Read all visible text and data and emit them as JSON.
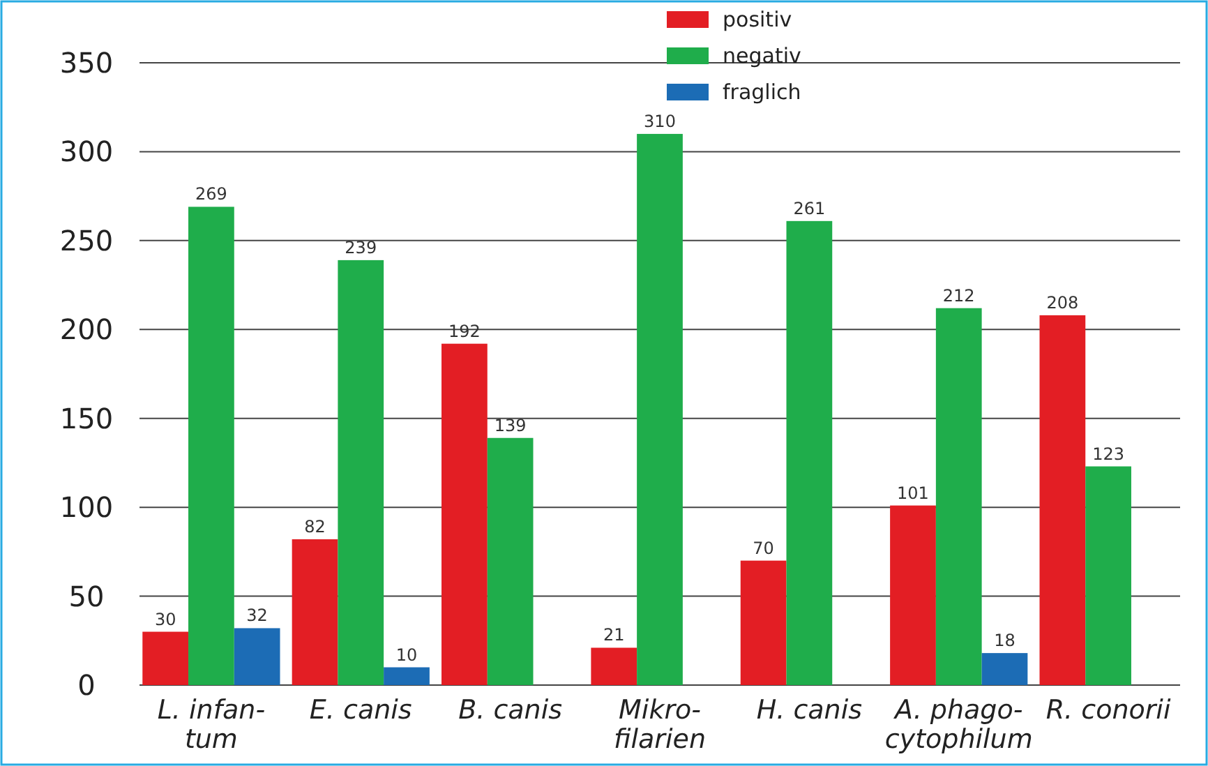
{
  "chart_data": {
    "type": "bar",
    "categories": [
      "L. infan-\ntum",
      "E. canis",
      "B. canis",
      "Mikro-\nfilarien",
      "H. canis",
      "A. phago-\ncytophilum",
      "R. conorii"
    ],
    "series": [
      {
        "name": "positiv",
        "color": "#e31e24",
        "values": [
          30,
          82,
          192,
          21,
          70,
          101,
          208
        ]
      },
      {
        "name": "negativ",
        "color": "#1fad4b",
        "values": [
          269,
          239,
          139,
          310,
          261,
          212,
          123
        ]
      },
      {
        "name": "fraglich",
        "color": "#1c6cb5",
        "values": [
          32,
          10,
          null,
          null,
          null,
          18,
          null
        ]
      }
    ],
    "ylim": [
      0,
      350
    ],
    "yticks": [
      0,
      50,
      100,
      150,
      200,
      250,
      300,
      350
    ],
    "grid": "y",
    "legend": "top right",
    "data_labels": true
  }
}
